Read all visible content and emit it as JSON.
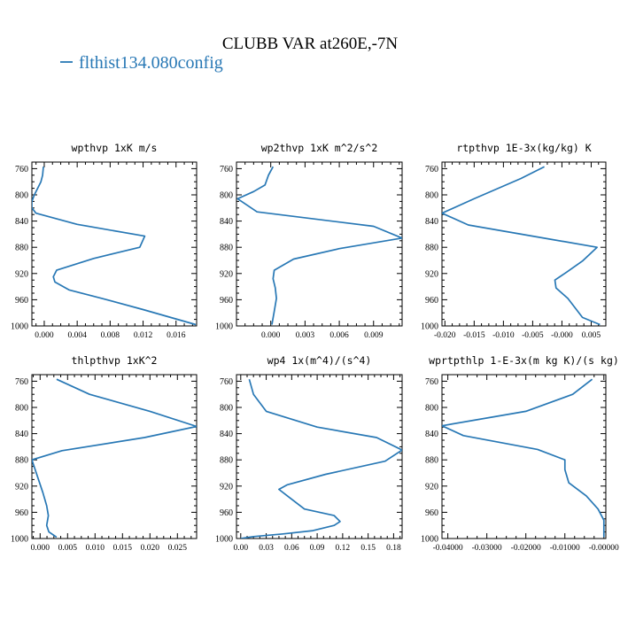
{
  "figure": {
    "title": "CLUBB VAR at260E,-7N",
    "legend_label": "flthist134.080config",
    "line_color": "#2878b5"
  },
  "chart_data": [
    {
      "type": "line",
      "title": "wpthvp  1xK m/s",
      "xlim": [
        -0.0015,
        0.0185
      ],
      "ylim": [
        1000,
        750
      ],
      "xticks": [
        0.0,
        0.004,
        0.008,
        0.012,
        0.016
      ],
      "xtick_labels": [
        "0.000",
        "0.004",
        "0.008",
        "0.012",
        "0.016"
      ],
      "yticks": [
        760,
        800,
        840,
        880,
        920,
        960,
        1000
      ],
      "series": [
        {
          "x": [
            -0.0001,
            -0.0002,
            -0.0004,
            -0.0008,
            -0.0012,
            -0.0015,
            -0.0015,
            -0.001,
            0.004,
            0.0122,
            0.0116,
            0.006,
            0.0015,
            0.0011,
            0.0013,
            0.003,
            0.007,
            0.012,
            0.0184
          ],
          "y": [
            757,
            770,
            780,
            790,
            800,
            810,
            820,
            828,
            845,
            863,
            880,
            897,
            915,
            925,
            933,
            945,
            958,
            975,
            998
          ]
        }
      ]
    },
    {
      "type": "line",
      "title": "wp2thvp  1xK m^2/s^2",
      "xlim": [
        -0.003,
        0.0115
      ],
      "ylim": [
        1000,
        750
      ],
      "xticks": [
        0.0,
        0.003,
        0.006,
        0.009
      ],
      "xtick_labels": [
        "0.000",
        "0.003",
        "0.006",
        "0.009"
      ],
      "yticks": [
        760,
        800,
        840,
        880,
        920,
        960,
        1000
      ],
      "series": [
        {
          "x": [
            0.0002,
            -0.0002,
            -0.0005,
            -0.0015,
            -0.0029,
            -0.0012,
            0.009,
            0.0115,
            0.006,
            0.002,
            0.0003,
            0.0002,
            0.0004,
            0.0005,
            0.0003,
            0.0001
          ],
          "y": [
            757,
            770,
            785,
            795,
            806,
            826,
            848,
            866,
            882,
            898,
            915,
            928,
            942,
            958,
            978,
            998
          ]
        }
      ]
    },
    {
      "type": "line",
      "title": "rtpthvp  1E-3x(kg/kg) K",
      "xlim": [
        -0.0205,
        0.0075
      ],
      "ylim": [
        1000,
        750
      ],
      "xticks": [
        -0.02,
        -0.015,
        -0.01,
        -0.005,
        0.0,
        0.005
      ],
      "xtick_labels": [
        "-0.020",
        "-0.015",
        "-0.010",
        "-0.005",
        "-0.000",
        "0.005"
      ],
      "yticks": [
        760,
        800,
        840,
        880,
        920,
        960,
        1000
      ],
      "series": [
        {
          "x": [
            -0.003,
            -0.007,
            -0.015,
            -0.0205,
            -0.016,
            -0.005,
            0.006,
            0.0035,
            0.0008,
            -0.0012,
            -0.001,
            0.001,
            0.0035,
            0.0065
          ],
          "y": [
            757,
            775,
            806,
            828,
            846,
            863,
            880,
            901,
            918,
            930,
            942,
            958,
            987,
            998
          ]
        }
      ]
    },
    {
      "type": "line",
      "title": "thlpthvp  1xK^2",
      "xlim": [
        -0.0015,
        0.0285
      ],
      "ylim": [
        1000,
        750
      ],
      "xticks": [
        0.0,
        0.005,
        0.01,
        0.015,
        0.02,
        0.025
      ],
      "xtick_labels": [
        "0.000",
        "0.005",
        "0.010",
        "0.015",
        "0.020",
        "0.025"
      ],
      "yticks": [
        760,
        800,
        840,
        880,
        920,
        960,
        1000
      ],
      "series": [
        {
          "x": [
            0.003,
            0.009,
            0.02,
            0.0285,
            0.019,
            0.004,
            -0.0015,
            -0.0005,
            0.0005,
            0.0012,
            0.0015,
            0.0012,
            0.0016,
            0.003
          ],
          "y": [
            757,
            780,
            806,
            829,
            846,
            866,
            880,
            905,
            930,
            950,
            965,
            980,
            990,
            998
          ]
        }
      ]
    },
    {
      "type": "line",
      "title": "wp4  1x(m^4)/(s^4)",
      "xlim": [
        -0.005,
        0.19
      ],
      "ylim": [
        1000,
        750
      ],
      "xticks": [
        0.0,
        0.03,
        0.06,
        0.09,
        0.12,
        0.15,
        0.18
      ],
      "xtick_labels": [
        "0.00",
        "0.03",
        "0.06",
        "0.09",
        "0.12",
        "0.15",
        "0.18"
      ],
      "yticks": [
        760,
        800,
        840,
        880,
        920,
        960,
        1000
      ],
      "series": [
        {
          "x": [
            0.01,
            0.015,
            0.03,
            0.09,
            0.16,
            0.19,
            0.17,
            0.1,
            0.055,
            0.045,
            0.055,
            0.075,
            0.11,
            0.117,
            0.11,
            0.085,
            0.05,
            0.015,
            0.0
          ],
          "y": [
            757,
            780,
            806,
            830,
            846,
            865,
            882,
            902,
            918,
            925,
            935,
            955,
            965,
            974,
            980,
            988,
            993,
            997,
            1000
          ]
        }
      ]
    },
    {
      "type": "line",
      "title": "wprtpthlp  1-E-3x(m kg K)/(s kg)",
      "xlim": [
        -0.0415,
        0.0005
      ],
      "ylim": [
        1000,
        750
      ],
      "xticks": [
        -0.04,
        -0.03,
        -0.02,
        -0.01,
        0.0
      ],
      "xtick_labels": [
        "-0.04000",
        "-0.03000",
        "-0.02000",
        "-0.01000",
        "-0.00000"
      ],
      "yticks": [
        760,
        800,
        840,
        880,
        920,
        960,
        1000
      ],
      "series": [
        {
          "x": [
            -0.003,
            -0.008,
            -0.02,
            -0.0415,
            -0.036,
            -0.017,
            -0.01,
            -0.01,
            -0.009,
            -0.0045,
            -0.0015,
            0.0,
            0.0
          ],
          "y": [
            757,
            780,
            806,
            828,
            843,
            864,
            880,
            895,
            915,
            935,
            955,
            972,
            998
          ]
        }
      ]
    }
  ]
}
